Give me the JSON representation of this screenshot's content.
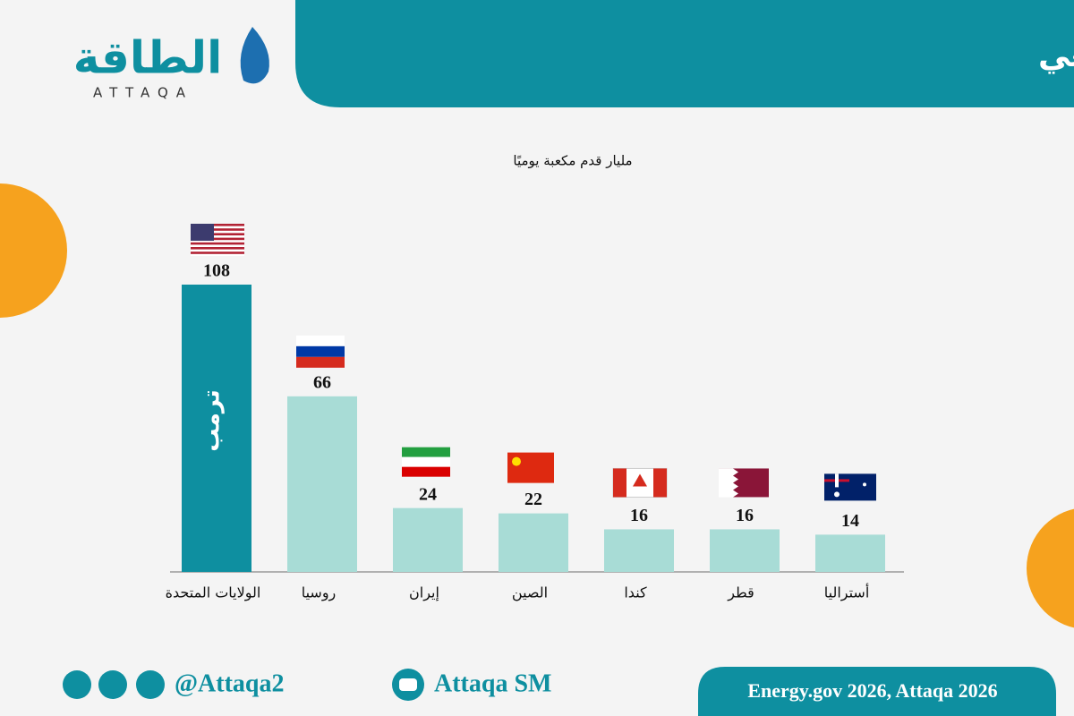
{
  "header": {
    "title": "أميركا تصدر دول العالم في إنتاج الغاز الطبيعي",
    "logo": "الطاقة",
    "logo_latin": "ATTAQA"
  },
  "chart_data": {
    "type": "bar",
    "subtitle": "مليار قدم مكعبة يوميًا",
    "categories": [
      "الولايات المتحدة",
      "روسيا",
      "إيران",
      "الصين",
      "كندا",
      "قطر",
      "أستراليا"
    ],
    "values": [
      108,
      66,
      24,
      22,
      16,
      16,
      14
    ],
    "colors": [
      "#0e8fa0",
      "#a8dcd6",
      "#a8dcd6",
      "#a8dcd6",
      "#a8dcd6",
      "#a8dcd6",
      "#a8dcd6"
    ],
    "annotation": "ترمب"
  },
  "footer": {
    "handle": "@Attaqa2",
    "channel": "Attaqa SM",
    "source": "Energy.gov 2026, Attaqa 2026"
  }
}
